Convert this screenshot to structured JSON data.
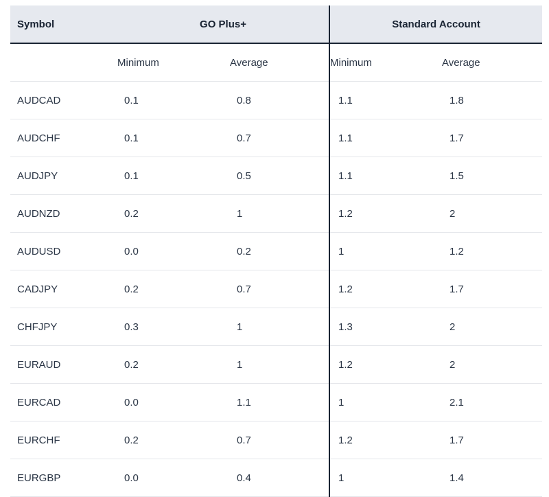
{
  "header": {
    "symbol": "Symbol",
    "group1": "GO Plus+",
    "group2": "Standard Account"
  },
  "subheader": {
    "minimum": "Minimum",
    "average": "Average"
  },
  "rows": [
    {
      "symbol": "AUDCAD",
      "go_min": "0.1",
      "go_avg": "0.8",
      "std_min": "1.1",
      "std_avg": "1.8"
    },
    {
      "symbol": "AUDCHF",
      "go_min": "0.1",
      "go_avg": "0.7",
      "std_min": "1.1",
      "std_avg": "1.7"
    },
    {
      "symbol": "AUDJPY",
      "go_min": "0.1",
      "go_avg": "0.5",
      "std_min": "1.1",
      "std_avg": "1.5"
    },
    {
      "symbol": "AUDNZD",
      "go_min": "0.2",
      "go_avg": "1",
      "std_min": "1.2",
      "std_avg": "2"
    },
    {
      "symbol": "AUDUSD",
      "go_min": "0.0",
      "go_avg": "0.2",
      "std_min": "1",
      "std_avg": "1.2"
    },
    {
      "symbol": "CADJPY",
      "go_min": "0.2",
      "go_avg": "0.7",
      "std_min": "1.2",
      "std_avg": "1.7"
    },
    {
      "symbol": "CHFJPY",
      "go_min": "0.3",
      "go_avg": "1",
      "std_min": "1.3",
      "std_avg": "2"
    },
    {
      "symbol": "EURAUD",
      "go_min": "0.2",
      "go_avg": "1",
      "std_min": "1.2",
      "std_avg": "2"
    },
    {
      "symbol": "EURCAD",
      "go_min": "0.0",
      "go_avg": "1.1",
      "std_min": "1",
      "std_avg": "2.1"
    },
    {
      "symbol": "EURCHF",
      "go_min": "0.2",
      "go_avg": "0.7",
      "std_min": "1.2",
      "std_avg": "1.7"
    },
    {
      "symbol": "EURGBP",
      "go_min": "0.0",
      "go_avg": "0.4",
      "std_min": "1",
      "std_avg": "1.4"
    }
  ]
}
